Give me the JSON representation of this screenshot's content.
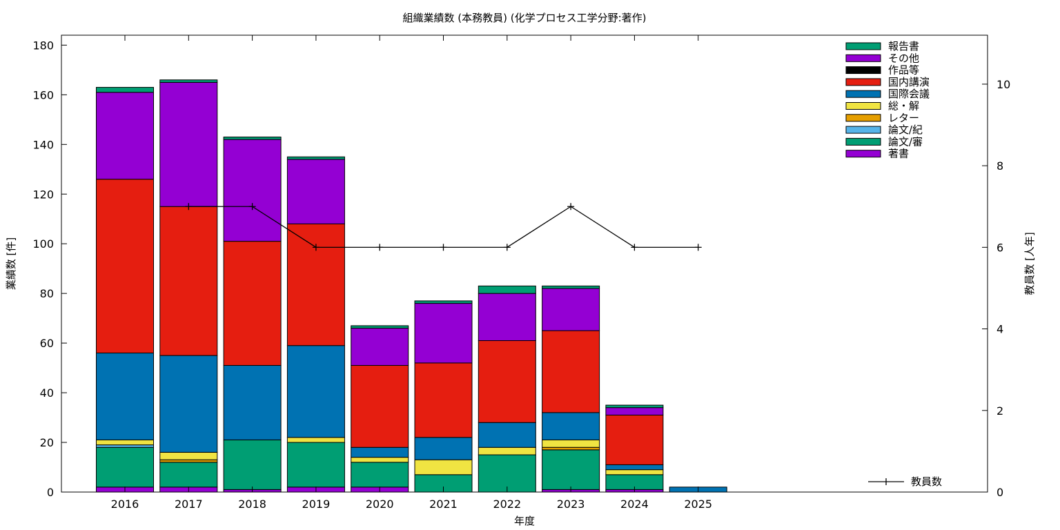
{
  "chart_data": {
    "type": "bar",
    "title": "組織業績数 (本務教員) (化学プロセス工学分野:著作)",
    "xlabel": "年度",
    "ylabel": "業績数 [件]",
    "y2label": "教員数 [人年]",
    "categories": [
      "2016",
      "2017",
      "2018",
      "2019",
      "2020",
      "2021",
      "2022",
      "2023",
      "2024",
      "2025"
    ],
    "ylim": [
      0,
      184
    ],
    "y2lim": [
      0,
      11.2
    ],
    "yticks": [
      0,
      20,
      40,
      60,
      80,
      100,
      120,
      140,
      160,
      180
    ],
    "y2ticks": [
      0,
      2,
      4,
      6,
      8,
      10
    ],
    "grid": false,
    "legend_position": "top-right",
    "series": [
      {
        "name": "著書",
        "color": "#9400d3",
        "values": [
          2,
          2,
          1,
          2,
          2,
          0,
          0,
          1,
          1,
          0
        ]
      },
      {
        "name": "論文/審",
        "color": "#009e73",
        "values": [
          16,
          10,
          20,
          18,
          10,
          7,
          15,
          16,
          6,
          0
        ]
      },
      {
        "name": "論文/紀",
        "color": "#56b4e9",
        "values": [
          1,
          0,
          0,
          0,
          0,
          0,
          0,
          0,
          0,
          0
        ]
      },
      {
        "name": "レター",
        "color": "#e69f00",
        "values": [
          0,
          1,
          0,
          0,
          0,
          0,
          0,
          1,
          0,
          0
        ]
      },
      {
        "name": "総・解",
        "color": "#f0e442",
        "values": [
          2,
          3,
          0,
          2,
          2,
          6,
          3,
          3,
          2,
          0
        ]
      },
      {
        "name": "国際会議",
        "color": "#0072b2",
        "values": [
          35,
          39,
          30,
          37,
          4,
          9,
          10,
          11,
          2,
          2
        ]
      },
      {
        "name": "国内講演",
        "color": "#e51e10",
        "values": [
          70,
          60,
          50,
          49,
          33,
          30,
          33,
          33,
          20,
          0
        ]
      },
      {
        "name": "作品等",
        "color": "#000000",
        "values": [
          0,
          0,
          0,
          0,
          0,
          0,
          0,
          0,
          0,
          0
        ]
      },
      {
        "name": "その他",
        "color": "#9400d3",
        "values": [
          35,
          50,
          41,
          26,
          15,
          24,
          19,
          17,
          3,
          0
        ]
      },
      {
        "name": "報告書",
        "color": "#009e73",
        "values": [
          2,
          1,
          1,
          1,
          1,
          1,
          3,
          1,
          1,
          0
        ]
      }
    ],
    "line_series": {
      "name": "教員数",
      "color": "#000000",
      "axis": "y2",
      "categories": [
        "2017",
        "2018",
        "2019",
        "2020",
        "2021",
        "2022",
        "2023",
        "2024",
        "2025"
      ],
      "values": [
        7,
        7,
        6,
        6,
        6,
        6,
        7,
        6,
        6
      ]
    }
  }
}
